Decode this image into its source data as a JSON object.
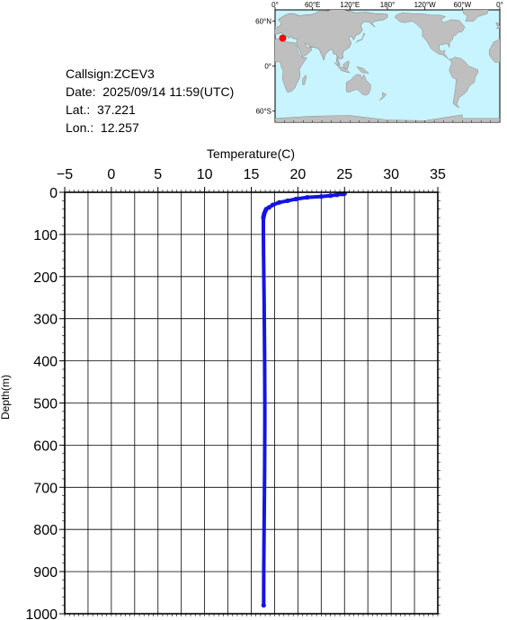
{
  "info": {
    "callsign": "Callsign:ZCEV3",
    "date": "Date:  2025/09/14 11:59(UTC)",
    "lat": "Lat.:  37.221",
    "lon": "Lon.:  12.257"
  },
  "map": {
    "lon_labels": [
      "0°",
      "60°E",
      "120°E",
      "180°",
      "120°W",
      "60°W",
      "0°"
    ],
    "lat_labels": [
      "60°N",
      "0°",
      "60°S"
    ],
    "ocean_color": "#c8f4ff",
    "land_color": "#bfbfbf",
    "marker_color": "#ff0000",
    "marker": {
      "lon": 12.257,
      "lat": 37.221
    }
  },
  "chart_data": {
    "type": "line",
    "xlabel": "Temperature(C)",
    "ylabel": "Depth(m)",
    "xlim": [
      -5,
      35
    ],
    "ylim": [
      0,
      1000
    ],
    "y_inverted": true,
    "x_ticks": [
      -5,
      0,
      5,
      10,
      15,
      20,
      25,
      30,
      35
    ],
    "y_ticks": [
      0,
      100,
      200,
      300,
      400,
      500,
      600,
      700,
      800,
      900,
      1000
    ],
    "grid": true,
    "series_color": "#1414e6",
    "series": [
      {
        "x": [
          25.0,
          24.8,
          24.2,
          23.5,
          22.5,
          21.0,
          19.8,
          18.9,
          18.0,
          17.3,
          16.9,
          16.6,
          16.5,
          16.4,
          16.35,
          16.3,
          16.3,
          16.3,
          16.32,
          16.35,
          16.38,
          16.4,
          16.42,
          16.44,
          16.45,
          16.46,
          16.46,
          16.45,
          16.44,
          16.42,
          16.4,
          16.38,
          16.36,
          16.34,
          16.33
        ],
        "y": [
          3,
          4,
          6,
          8,
          10,
          12,
          16,
          20,
          24,
          30,
          36,
          40,
          45,
          50,
          55,
          60,
          80,
          100,
          150,
          200,
          250,
          300,
          350,
          400,
          450,
          500,
          550,
          600,
          650,
          700,
          750,
          800,
          850,
          900,
          980
        ]
      }
    ]
  }
}
